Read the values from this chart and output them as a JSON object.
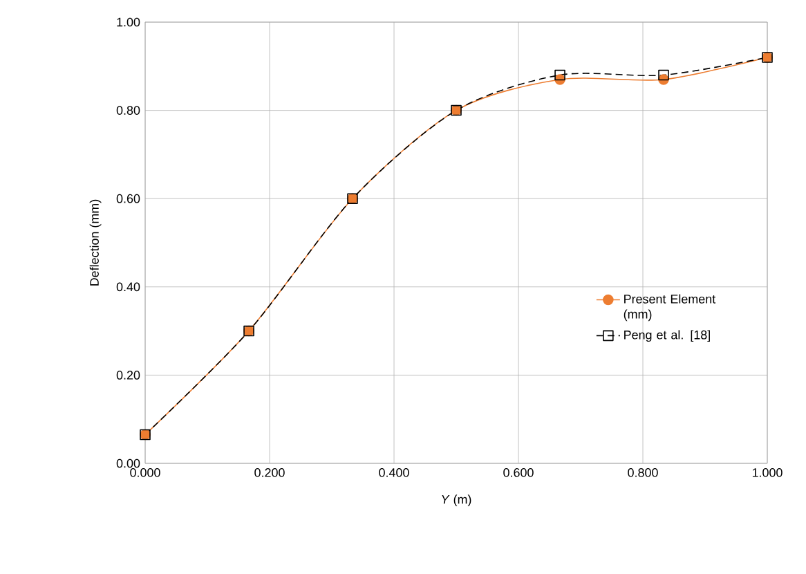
{
  "chart_data": {
    "type": "line",
    "xlabel": "*Y* (m)",
    "ylabel": "Deflection (mm)",
    "x": [
      0,
      0.1667,
      0.3333,
      0.5,
      0.6667,
      0.8333,
      1.0
    ],
    "series": [
      {
        "name": "Present Element (mm)",
        "color": "#ed7d31",
        "values": [
          0.065,
          0.3,
          0.6,
          0.8,
          0.87,
          0.87,
          0.92
        ],
        "marker": "circle",
        "line_style": "solid"
      },
      {
        "name": "Peng et al. [18]",
        "color": "#000000",
        "values": [
          0.065,
          0.3,
          0.6,
          0.8,
          0.88,
          0.88,
          0.92
        ],
        "marker": "square",
        "line_style": "dashed"
      }
    ],
    "xlim": [
      0,
      1.0
    ],
    "ylim": [
      0,
      1.0
    ],
    "xticks": [
      {
        "value": 0,
        "label": "0.000"
      },
      {
        "value": 0.2,
        "label": "0.200"
      },
      {
        "value": 0.4,
        "label": "0.400"
      },
      {
        "value": 0.6,
        "label": "0.600"
      },
      {
        "value": 0.8,
        "label": "0.800"
      },
      {
        "value": 1.0,
        "label": "1.000"
      }
    ],
    "yticks": [
      {
        "value": 0,
        "label": "0.00"
      },
      {
        "value": 0.2,
        "label": "0.20"
      },
      {
        "value": 0.4,
        "label": "0.40"
      },
      {
        "value": 0.6,
        "label": "0.60"
      },
      {
        "value": 0.8,
        "label": "0.80"
      },
      {
        "value": 1.0,
        "label": "1.00"
      }
    ],
    "grid": true,
    "legend": "right"
  }
}
